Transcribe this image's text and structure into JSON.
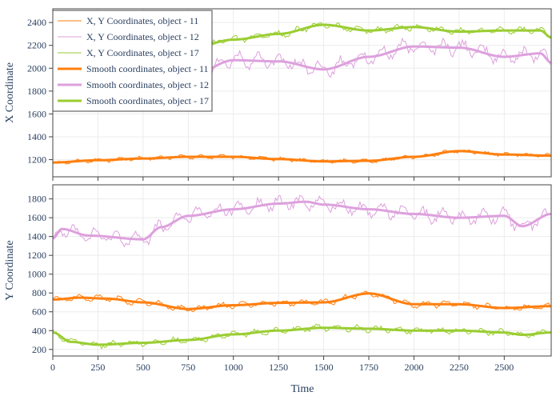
{
  "chart_data": {
    "type": "line",
    "x_label": "Time",
    "x_ticks": [
      0,
      250,
      500,
      750,
      1000,
      1250,
      1500,
      1750,
      2000,
      2250,
      2500
    ],
    "x_range": [
      0,
      2760
    ],
    "colors": {
      "obj11": "#ff7f0e",
      "obj12": "#dda0dd",
      "obj17": "#9acd32"
    },
    "legend": [
      {
        "label": "X, Y Coordinates, object - 11",
        "key": "obj11",
        "style": "raw"
      },
      {
        "label": "X, Y Coordinates, object - 12",
        "key": "obj12",
        "style": "raw"
      },
      {
        "label": "X, Y Coordinates, object - 17",
        "key": "obj17",
        "style": "raw"
      },
      {
        "label": "Smooth coordinates, object - 11",
        "key": "obj11",
        "style": "smooth"
      },
      {
        "label": "Smooth coordinates, object - 12",
        "key": "obj12",
        "style": "smooth"
      },
      {
        "label": "Smooth coordinates, object - 17",
        "key": "obj17",
        "style": "smooth"
      }
    ],
    "panels": [
      {
        "id": "top",
        "y_label": "X Coordinate",
        "y_range": [
          1050,
          2520
        ],
        "y_ticks": [
          1200,
          1400,
          1600,
          1800,
          2000,
          2200,
          2400
        ],
        "series": [
          {
            "key": "obj11",
            "name": "Smooth coordinates, object - 11",
            "x": [
              0,
              250,
              500,
              750,
              1000,
              1250,
              1500,
              1750,
              2000,
              2250,
              2500,
              2760
            ],
            "y": [
              1175,
              1195,
              1210,
              1225,
              1225,
              1205,
              1185,
              1190,
              1225,
              1275,
              1245,
              1235
            ],
            "noise_amp": 20
          },
          {
            "key": "obj12",
            "name": "Smooth coordinates, object - 12",
            "x": [
              0,
              100,
              250,
              500,
              750,
              1000,
              1250,
              1500,
              1750,
              2000,
              2250,
              2500,
              2700,
              2760
            ],
            "y": [
              1800,
              1850,
              1870,
              1880,
              1920,
              2070,
              2060,
              1990,
              2100,
              2190,
              2180,
              2100,
              2130,
              2050
            ],
            "noise_amp": 80
          },
          {
            "key": "obj17",
            "name": "Smooth coordinates, object - 17",
            "x": [
              0,
              100,
              250,
              500,
              750,
              1000,
              1250,
              1500,
              1750,
              2000,
              2250,
              2500,
              2700,
              2760
            ],
            "y": [
              2100,
              2160,
              2050,
              2100,
              2170,
              2250,
              2300,
              2380,
              2330,
              2360,
              2320,
              2330,
              2330,
              2270
            ],
            "noise_amp": 35
          }
        ]
      },
      {
        "id": "bottom",
        "y_label": "Y Coordinate",
        "y_range": [
          130,
          1950
        ],
        "y_ticks": [
          200,
          400,
          600,
          800,
          1000,
          1200,
          1400,
          1600,
          1800
        ],
        "series": [
          {
            "key": "obj11",
            "name": "Smooth coordinates, object - 11",
            "x": [
              0,
              150,
              300,
              500,
              750,
              1000,
              1250,
              1500,
              1750,
              2000,
              2250,
              2500,
              2760
            ],
            "y": [
              730,
              750,
              740,
              700,
              630,
              670,
              695,
              700,
              795,
              680,
              680,
              640,
              660
            ],
            "noise_amp": 40
          },
          {
            "key": "obj12",
            "name": "Smooth coordinates, object - 12",
            "x": [
              0,
              50,
              200,
              500,
              600,
              750,
              1000,
              1250,
              1400,
              1500,
              1750,
              2000,
              2250,
              2500,
              2600,
              2760
            ],
            "y": [
              1380,
              1480,
              1410,
              1370,
              1500,
              1620,
              1690,
              1750,
              1770,
              1740,
              1690,
              1640,
              1600,
              1620,
              1510,
              1640
            ],
            "noise_amp": 90
          },
          {
            "key": "obj17",
            "name": "Smooth coordinates, object - 17",
            "x": [
              0,
              100,
              250,
              500,
              750,
              1000,
              1250,
              1500,
              1750,
              2000,
              2250,
              2500,
              2600,
              2760
            ],
            "y": [
              380,
              280,
              250,
              270,
              300,
              360,
              400,
              430,
              420,
              400,
              400,
              380,
              355,
              380
            ],
            "noise_amp": 40
          }
        ]
      }
    ]
  }
}
